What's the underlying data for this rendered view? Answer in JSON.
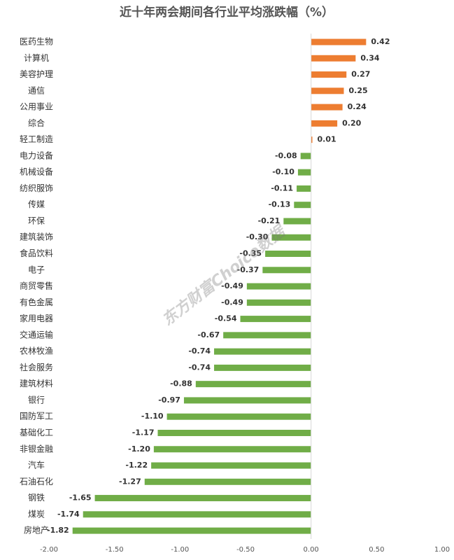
{
  "chart_data": {
    "type": "barh",
    "title": "近十年两会期间各行业平均涨跌幅（%）",
    "watermark": "东方财富Choice数据",
    "categories": [
      "医药生物",
      "计算机",
      "美容护理",
      "通信",
      "公用事业",
      "综合",
      "轻工制造",
      "电力设备",
      "机械设备",
      "纺织服饰",
      "传媒",
      "环保",
      "建筑装饰",
      "食品饮料",
      "电子",
      "商贸零售",
      "有色金属",
      "家用电器",
      "交通运输",
      "农林牧渔",
      "社会服务",
      "建筑材料",
      "银行",
      "国防军工",
      "基础化工",
      "非银金融",
      "汽车",
      "石油石化",
      "钢铁",
      "煤炭",
      "房地产"
    ],
    "values": [
      0.42,
      0.34,
      0.27,
      0.25,
      0.24,
      0.2,
      0.01,
      -0.08,
      -0.1,
      -0.11,
      -0.13,
      -0.21,
      -0.3,
      -0.35,
      -0.37,
      -0.49,
      -0.49,
      -0.54,
      -0.67,
      -0.74,
      -0.74,
      -0.88,
      -0.97,
      -1.1,
      -1.17,
      -1.2,
      -1.22,
      -1.27,
      -1.65,
      -1.74,
      -1.82
    ],
    "value_labels": [
      "0.42",
      "0.34",
      "0.27",
      "0.25",
      "0.24",
      "0.20",
      "0.01",
      "-0.08",
      "-0.10",
      "-0.11",
      "-0.13",
      "-0.21",
      "-0.30",
      "-0.35",
      "-0.37",
      "-0.49",
      "-0.49",
      "-0.54",
      "-0.67",
      "-0.74",
      "-0.74",
      "-0.88",
      "-0.97",
      "-1.10",
      "-1.17",
      "-1.20",
      "-1.22",
      "-1.27",
      "-1.65",
      "-1.74",
      "-1.82"
    ],
    "positive_color": "#ED7D31",
    "negative_color": "#70AD47",
    "xlim": [
      -2,
      1
    ],
    "xticks": [
      {
        "value": -2,
        "label": "-2.00"
      },
      {
        "value": -1.5,
        "label": "-1.50"
      },
      {
        "value": -1,
        "label": "-1.00"
      },
      {
        "value": -0.5,
        "label": "-0.50"
      },
      {
        "value": 0,
        "label": "0.00"
      },
      {
        "value": 0.5,
        "label": "0.50"
      },
      {
        "value": 1,
        "label": "1.00"
      }
    ],
    "grid": false
  }
}
